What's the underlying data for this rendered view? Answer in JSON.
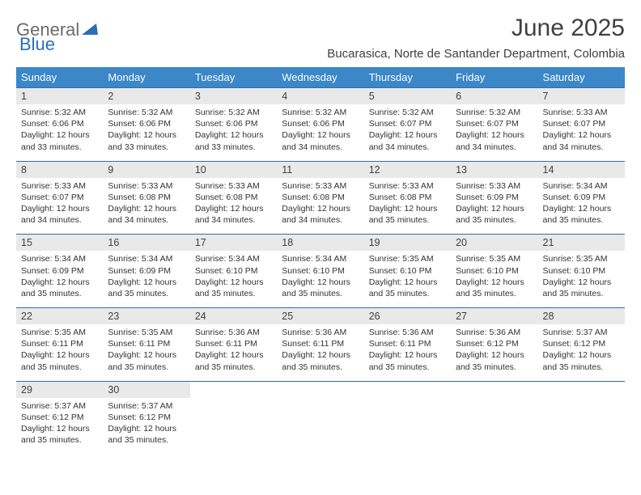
{
  "brand": {
    "part1": "General",
    "part2": "Blue"
  },
  "title": "June 2025",
  "location": "Bucarasica, Norte de Santander Department, Colombia",
  "colors": {
    "header_bg": "#3b87c8",
    "header_text": "#ffffff",
    "daynum_bg": "#e9e9e9",
    "row_divider": "#2a6fb5",
    "brand_gray": "#6b6b6b",
    "brand_blue": "#2a6fb5",
    "title_color": "#404040",
    "body_text": "#333333",
    "page_bg": "#ffffff"
  },
  "layout": {
    "columns": 7,
    "rows": 5,
    "daynum_fontsize": 12.5,
    "body_fontsize": 10.5,
    "header_fontsize": 13,
    "title_fontsize": 30,
    "location_fontsize": 15
  },
  "weekdays": [
    "Sunday",
    "Monday",
    "Tuesday",
    "Wednesday",
    "Thursday",
    "Friday",
    "Saturday"
  ],
  "days": [
    {
      "n": "1",
      "sunrise": "Sunrise: 5:32 AM",
      "sunset": "Sunset: 6:06 PM",
      "day": "Daylight: 12 hours and 33 minutes."
    },
    {
      "n": "2",
      "sunrise": "Sunrise: 5:32 AM",
      "sunset": "Sunset: 6:06 PM",
      "day": "Daylight: 12 hours and 33 minutes."
    },
    {
      "n": "3",
      "sunrise": "Sunrise: 5:32 AM",
      "sunset": "Sunset: 6:06 PM",
      "day": "Daylight: 12 hours and 33 minutes."
    },
    {
      "n": "4",
      "sunrise": "Sunrise: 5:32 AM",
      "sunset": "Sunset: 6:06 PM",
      "day": "Daylight: 12 hours and 34 minutes."
    },
    {
      "n": "5",
      "sunrise": "Sunrise: 5:32 AM",
      "sunset": "Sunset: 6:07 PM",
      "day": "Daylight: 12 hours and 34 minutes."
    },
    {
      "n": "6",
      "sunrise": "Sunrise: 5:32 AM",
      "sunset": "Sunset: 6:07 PM",
      "day": "Daylight: 12 hours and 34 minutes."
    },
    {
      "n": "7",
      "sunrise": "Sunrise: 5:33 AM",
      "sunset": "Sunset: 6:07 PM",
      "day": "Daylight: 12 hours and 34 minutes."
    },
    {
      "n": "8",
      "sunrise": "Sunrise: 5:33 AM",
      "sunset": "Sunset: 6:07 PM",
      "day": "Daylight: 12 hours and 34 minutes."
    },
    {
      "n": "9",
      "sunrise": "Sunrise: 5:33 AM",
      "sunset": "Sunset: 6:08 PM",
      "day": "Daylight: 12 hours and 34 minutes."
    },
    {
      "n": "10",
      "sunrise": "Sunrise: 5:33 AM",
      "sunset": "Sunset: 6:08 PM",
      "day": "Daylight: 12 hours and 34 minutes."
    },
    {
      "n": "11",
      "sunrise": "Sunrise: 5:33 AM",
      "sunset": "Sunset: 6:08 PM",
      "day": "Daylight: 12 hours and 34 minutes."
    },
    {
      "n": "12",
      "sunrise": "Sunrise: 5:33 AM",
      "sunset": "Sunset: 6:08 PM",
      "day": "Daylight: 12 hours and 35 minutes."
    },
    {
      "n": "13",
      "sunrise": "Sunrise: 5:33 AM",
      "sunset": "Sunset: 6:09 PM",
      "day": "Daylight: 12 hours and 35 minutes."
    },
    {
      "n": "14",
      "sunrise": "Sunrise: 5:34 AM",
      "sunset": "Sunset: 6:09 PM",
      "day": "Daylight: 12 hours and 35 minutes."
    },
    {
      "n": "15",
      "sunrise": "Sunrise: 5:34 AM",
      "sunset": "Sunset: 6:09 PM",
      "day": "Daylight: 12 hours and 35 minutes."
    },
    {
      "n": "16",
      "sunrise": "Sunrise: 5:34 AM",
      "sunset": "Sunset: 6:09 PM",
      "day": "Daylight: 12 hours and 35 minutes."
    },
    {
      "n": "17",
      "sunrise": "Sunrise: 5:34 AM",
      "sunset": "Sunset: 6:10 PM",
      "day": "Daylight: 12 hours and 35 minutes."
    },
    {
      "n": "18",
      "sunrise": "Sunrise: 5:34 AM",
      "sunset": "Sunset: 6:10 PM",
      "day": "Daylight: 12 hours and 35 minutes."
    },
    {
      "n": "19",
      "sunrise": "Sunrise: 5:35 AM",
      "sunset": "Sunset: 6:10 PM",
      "day": "Daylight: 12 hours and 35 minutes."
    },
    {
      "n": "20",
      "sunrise": "Sunrise: 5:35 AM",
      "sunset": "Sunset: 6:10 PM",
      "day": "Daylight: 12 hours and 35 minutes."
    },
    {
      "n": "21",
      "sunrise": "Sunrise: 5:35 AM",
      "sunset": "Sunset: 6:10 PM",
      "day": "Daylight: 12 hours and 35 minutes."
    },
    {
      "n": "22",
      "sunrise": "Sunrise: 5:35 AM",
      "sunset": "Sunset: 6:11 PM",
      "day": "Daylight: 12 hours and 35 minutes."
    },
    {
      "n": "23",
      "sunrise": "Sunrise: 5:35 AM",
      "sunset": "Sunset: 6:11 PM",
      "day": "Daylight: 12 hours and 35 minutes."
    },
    {
      "n": "24",
      "sunrise": "Sunrise: 5:36 AM",
      "sunset": "Sunset: 6:11 PM",
      "day": "Daylight: 12 hours and 35 minutes."
    },
    {
      "n": "25",
      "sunrise": "Sunrise: 5:36 AM",
      "sunset": "Sunset: 6:11 PM",
      "day": "Daylight: 12 hours and 35 minutes."
    },
    {
      "n": "26",
      "sunrise": "Sunrise: 5:36 AM",
      "sunset": "Sunset: 6:11 PM",
      "day": "Daylight: 12 hours and 35 minutes."
    },
    {
      "n": "27",
      "sunrise": "Sunrise: 5:36 AM",
      "sunset": "Sunset: 6:12 PM",
      "day": "Daylight: 12 hours and 35 minutes."
    },
    {
      "n": "28",
      "sunrise": "Sunrise: 5:37 AM",
      "sunset": "Sunset: 6:12 PM",
      "day": "Daylight: 12 hours and 35 minutes."
    },
    {
      "n": "29",
      "sunrise": "Sunrise: 5:37 AM",
      "sunset": "Sunset: 6:12 PM",
      "day": "Daylight: 12 hours and 35 minutes."
    },
    {
      "n": "30",
      "sunrise": "Sunrise: 5:37 AM",
      "sunset": "Sunset: 6:12 PM",
      "day": "Daylight: 12 hours and 35 minutes."
    }
  ]
}
